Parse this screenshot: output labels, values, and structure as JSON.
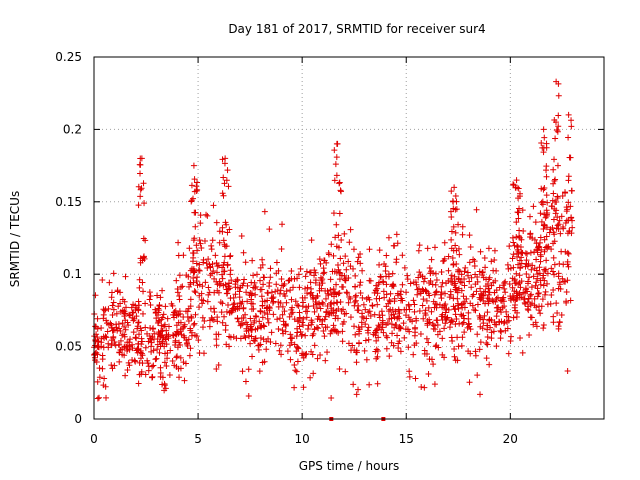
{
  "chart_data": {
    "type": "scatter",
    "title": "Day 181 of 2017, SRMTID for receiver sur4",
    "xlabel": "GPS time / hours",
    "ylabel": "SRMTID / TECUs",
    "xlim": [
      0,
      24.5
    ],
    "ylim": [
      0,
      0.25
    ],
    "x_ticks": [
      0,
      5,
      10,
      15,
      20
    ],
    "x_tick_labels": [
      "0",
      "5",
      "10",
      "15",
      "20"
    ],
    "y_ticks": [
      0,
      0.05,
      0.1,
      0.15,
      0.2,
      0.25
    ],
    "y_tick_labels": [
      "0",
      "0.05",
      "0.1",
      "0.15",
      "0.2",
      "0.25"
    ],
    "grid": true,
    "marker": "+",
    "series_color": "#e00000",
    "approx_point_count": 1800,
    "trend": [
      {
        "x": 0.0,
        "y": 0.045,
        "spread": 0.015
      },
      {
        "x": 1.0,
        "y": 0.06,
        "spread": 0.018
      },
      {
        "x": 2.0,
        "y": 0.06,
        "spread": 0.018
      },
      {
        "x": 3.0,
        "y": 0.055,
        "spread": 0.015
      },
      {
        "x": 4.0,
        "y": 0.06,
        "spread": 0.016
      },
      {
        "x": 5.0,
        "y": 0.09,
        "spread": 0.022
      },
      {
        "x": 6.0,
        "y": 0.095,
        "spread": 0.022
      },
      {
        "x": 7.0,
        "y": 0.08,
        "spread": 0.02
      },
      {
        "x": 8.0,
        "y": 0.075,
        "spread": 0.02
      },
      {
        "x": 9.0,
        "y": 0.075,
        "spread": 0.02
      },
      {
        "x": 10.0,
        "y": 0.065,
        "spread": 0.018
      },
      {
        "x": 11.0,
        "y": 0.075,
        "spread": 0.02
      },
      {
        "x": 12.0,
        "y": 0.085,
        "spread": 0.022
      },
      {
        "x": 13.0,
        "y": 0.07,
        "spread": 0.02
      },
      {
        "x": 14.0,
        "y": 0.08,
        "spread": 0.02
      },
      {
        "x": 15.0,
        "y": 0.07,
        "spread": 0.02
      },
      {
        "x": 16.0,
        "y": 0.07,
        "spread": 0.02
      },
      {
        "x": 17.0,
        "y": 0.08,
        "spread": 0.02
      },
      {
        "x": 18.0,
        "y": 0.08,
        "spread": 0.02
      },
      {
        "x": 19.0,
        "y": 0.075,
        "spread": 0.02
      },
      {
        "x": 20.0,
        "y": 0.085,
        "spread": 0.02
      },
      {
        "x": 21.0,
        "y": 0.1,
        "spread": 0.022
      },
      {
        "x": 22.0,
        "y": 0.12,
        "spread": 0.028
      },
      {
        "x": 22.8,
        "y": 0.12,
        "spread": 0.03
      }
    ],
    "spikes": [
      {
        "x": 2.3,
        "y_max": 0.18
      },
      {
        "x": 4.8,
        "y_max": 0.175
      },
      {
        "x": 6.3,
        "y_max": 0.18
      },
      {
        "x": 11.7,
        "y_max": 0.19
      },
      {
        "x": 17.3,
        "y_max": 0.16
      },
      {
        "x": 20.3,
        "y_max": 0.165
      },
      {
        "x": 21.6,
        "y_max": 0.2
      },
      {
        "x": 22.2,
        "y_max": 0.233
      },
      {
        "x": 22.8,
        "y_max": 0.21
      }
    ],
    "zero_points": [
      {
        "x": 11.4,
        "y": 0.0
      },
      {
        "x": 13.9,
        "y": 0.0
      }
    ],
    "x_range_of_data": [
      0,
      22.9
    ]
  }
}
